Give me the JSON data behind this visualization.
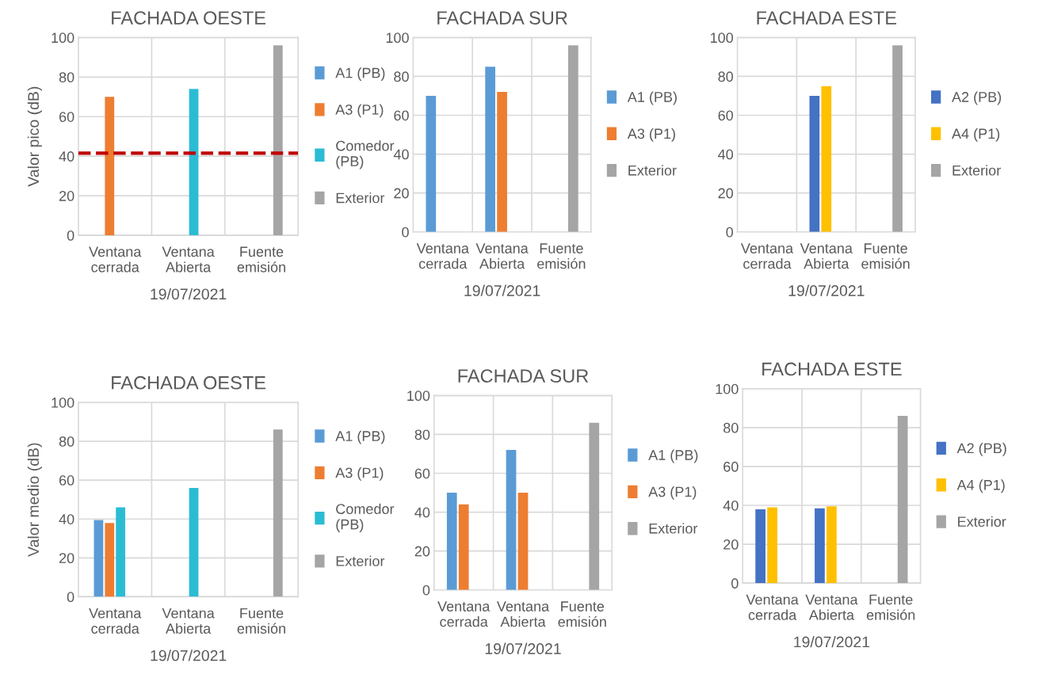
{
  "chart_data": [
    {
      "type": "bar",
      "title": "FACHADA OESTE",
      "xlabel": "19/07/2021",
      "ylabel": "Valor pico (dB)",
      "categories": [
        "Ventana\ncerrada",
        "Ventana\nAbierta",
        "Fuente\nemisión"
      ],
      "ylim": [
        0,
        100
      ],
      "yticks": [
        0,
        20,
        40,
        60,
        80,
        100
      ],
      "grid": true,
      "legend": "right",
      "series": [
        {
          "name": "A1 (PB)",
          "color": "#5b9bd5",
          "values": [
            null,
            null,
            null
          ]
        },
        {
          "name": "A3 (P1)",
          "color": "#ed7d31",
          "values": [
            70,
            null,
            null
          ]
        },
        {
          "name": "Comedor\n(PB)",
          "color": "#2bbcd4",
          "values": [
            null,
            74,
            null
          ]
        },
        {
          "name": "Exterior",
          "color": "#a5a5a5",
          "values": [
            null,
            null,
            96
          ]
        }
      ],
      "ref_lines": [
        {
          "axis": "y",
          "value": 41.5,
          "color": "#c00000",
          "line_style": "dashed"
        }
      ]
    },
    {
      "type": "bar",
      "title": "FACHADA SUR",
      "xlabel": "19/07/2021",
      "categories": [
        "Ventana\ncerrada",
        "Ventana\nAbierta",
        "Fuente\nemisión"
      ],
      "ylim": [
        0,
        100
      ],
      "yticks": [
        0,
        20,
        40,
        60,
        80,
        100
      ],
      "grid": true,
      "legend": "right",
      "series": [
        {
          "name": "A1 (PB)",
          "color": "#5b9bd5",
          "values": [
            70,
            85,
            null
          ]
        },
        {
          "name": "A3 (P1)",
          "color": "#ed7d31",
          "values": [
            null,
            72,
            null
          ]
        },
        {
          "name": "Exterior",
          "color": "#a5a5a5",
          "values": [
            null,
            null,
            96
          ]
        }
      ]
    },
    {
      "type": "bar",
      "title": "FACHADA ESTE",
      "xlabel": "19/07/2021",
      "categories": [
        "Ventana\ncerrada",
        "Ventana\nAbierta",
        "Fuente\nemisión"
      ],
      "ylim": [
        0,
        100
      ],
      "yticks": [
        0,
        20,
        40,
        60,
        80,
        100
      ],
      "grid": true,
      "legend": "right",
      "series": [
        {
          "name": "A2 (PB)",
          "color": "#4472c4",
          "values": [
            null,
            70,
            null
          ]
        },
        {
          "name": "A4 (P1)",
          "color": "#ffc000",
          "values": [
            null,
            75,
            null
          ]
        },
        {
          "name": "Exterior",
          "color": "#a5a5a5",
          "values": [
            null,
            null,
            96
          ]
        }
      ]
    },
    {
      "type": "bar",
      "title": "FACHADA OESTE",
      "xlabel": "19/07/2021",
      "ylabel": "Valor medio (dB)",
      "categories": [
        "Ventana\ncerrada",
        "Ventana\nAbierta",
        "Fuente\nemisión"
      ],
      "ylim": [
        0,
        100
      ],
      "yticks": [
        0,
        20,
        40,
        60,
        80,
        100
      ],
      "grid": true,
      "legend": "right",
      "series": [
        {
          "name": "A1 (PB)",
          "color": "#5b9bd5",
          "values": [
            39.5,
            null,
            null
          ]
        },
        {
          "name": "A3 (P1)",
          "color": "#ed7d31",
          "values": [
            38,
            null,
            null
          ]
        },
        {
          "name": "Comedor\n(PB)",
          "color": "#2bbcd4",
          "values": [
            46,
            56,
            null
          ]
        },
        {
          "name": "Exterior",
          "color": "#a5a5a5",
          "values": [
            null,
            null,
            86
          ]
        }
      ]
    },
    {
      "type": "bar",
      "title": "FACHADA SUR",
      "xlabel": "19/07/2021",
      "categories": [
        "Ventana\ncerrada",
        "Ventana\nAbierta",
        "Fuente\nemisión"
      ],
      "ylim": [
        0,
        100
      ],
      "yticks": [
        0,
        20,
        40,
        60,
        80,
        100
      ],
      "grid": true,
      "legend": "right",
      "series": [
        {
          "name": "A1 (PB)",
          "color": "#5b9bd5",
          "values": [
            50,
            72,
            null
          ]
        },
        {
          "name": "A3 (P1)",
          "color": "#ed7d31",
          "values": [
            44,
            50,
            null
          ]
        },
        {
          "name": "Exterior",
          "color": "#a5a5a5",
          "values": [
            null,
            null,
            86
          ]
        }
      ]
    },
    {
      "type": "bar",
      "title": "FACHADA ESTE",
      "xlabel": "19/07/2021",
      "categories": [
        "Ventana\ncerrada",
        "Ventana\nAbierta",
        "Fuente\nemisión"
      ],
      "ylim": [
        0,
        100
      ],
      "yticks": [
        0,
        20,
        40,
        60,
        80,
        100
      ],
      "grid": true,
      "legend": "right",
      "series": [
        {
          "name": "A2 (PB)",
          "color": "#4472c4",
          "values": [
            38,
            38.5,
            null
          ]
        },
        {
          "name": "A4 (P1)",
          "color": "#ffc000",
          "values": [
            39,
            39.5,
            null
          ]
        },
        {
          "name": "Exterior",
          "color": "#a5a5a5",
          "values": [
            null,
            null,
            86
          ]
        }
      ]
    }
  ]
}
